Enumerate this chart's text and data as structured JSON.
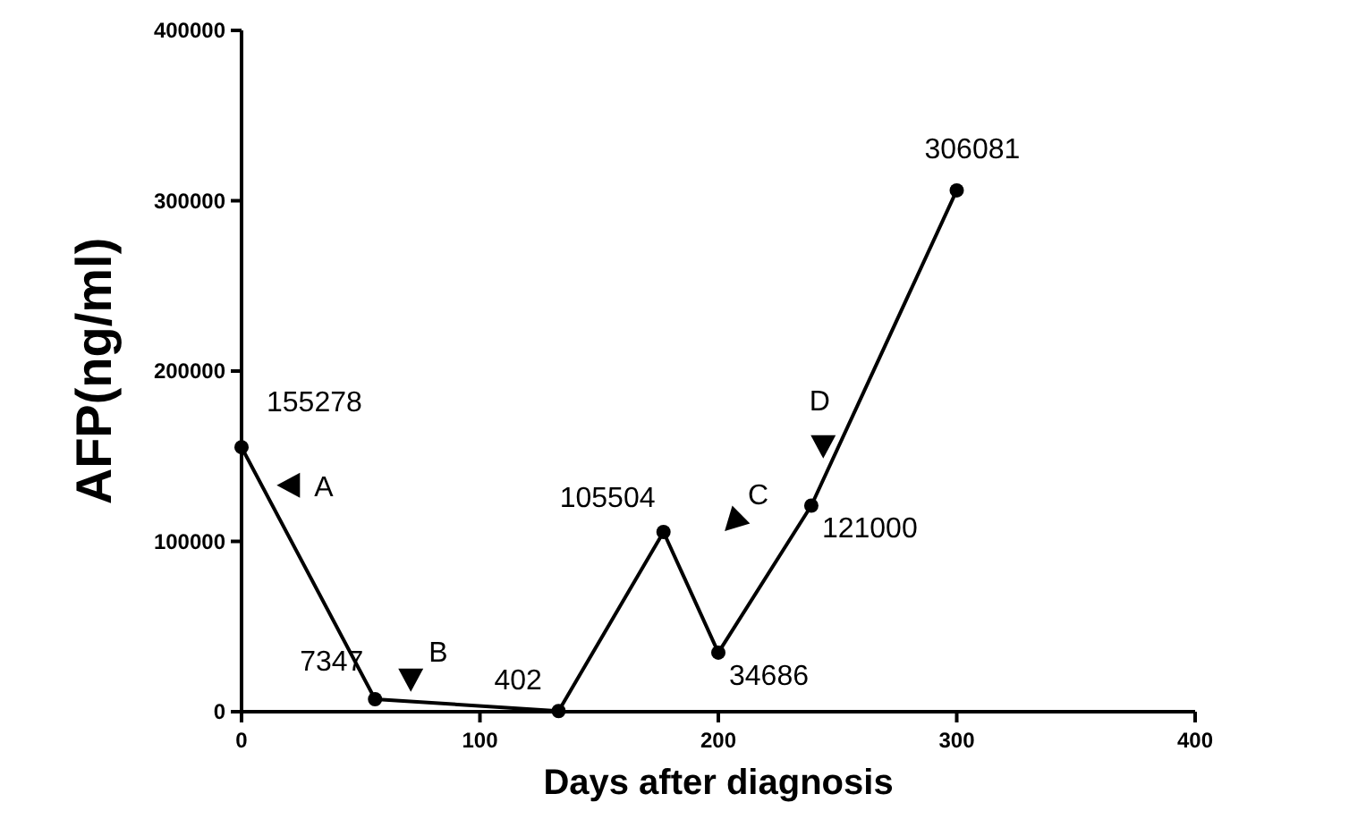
{
  "chart_data": {
    "type": "line",
    "xlabel": "Days after diagnosis",
    "ylabel": "AFP(ng/ml)",
    "x": [
      0,
      56,
      133,
      177,
      200,
      239,
      300
    ],
    "series": [
      {
        "color": "#000000",
        "values": [
          155278,
          7347,
          402,
          105504,
          34686,
          121000,
          306081
        ]
      }
    ],
    "xlim": [
      0,
      400
    ],
    "xticks": [
      0,
      100,
      200,
      300,
      400
    ],
    "ylim": [
      0,
      400000
    ],
    "yticks": [
      0,
      100000,
      200000,
      300000,
      400000
    ],
    "grid": false,
    "marker": "circle",
    "line_style": "solid",
    "data_labels": true,
    "annotations": [
      {
        "text": "A",
        "x": 20,
        "y": 133000
      },
      {
        "text": "B",
        "x": 71,
        "y": 19000
      },
      "C",
      {
        "text": "D",
        "x": 244,
        "y": 156000
      }
    ]
  }
}
